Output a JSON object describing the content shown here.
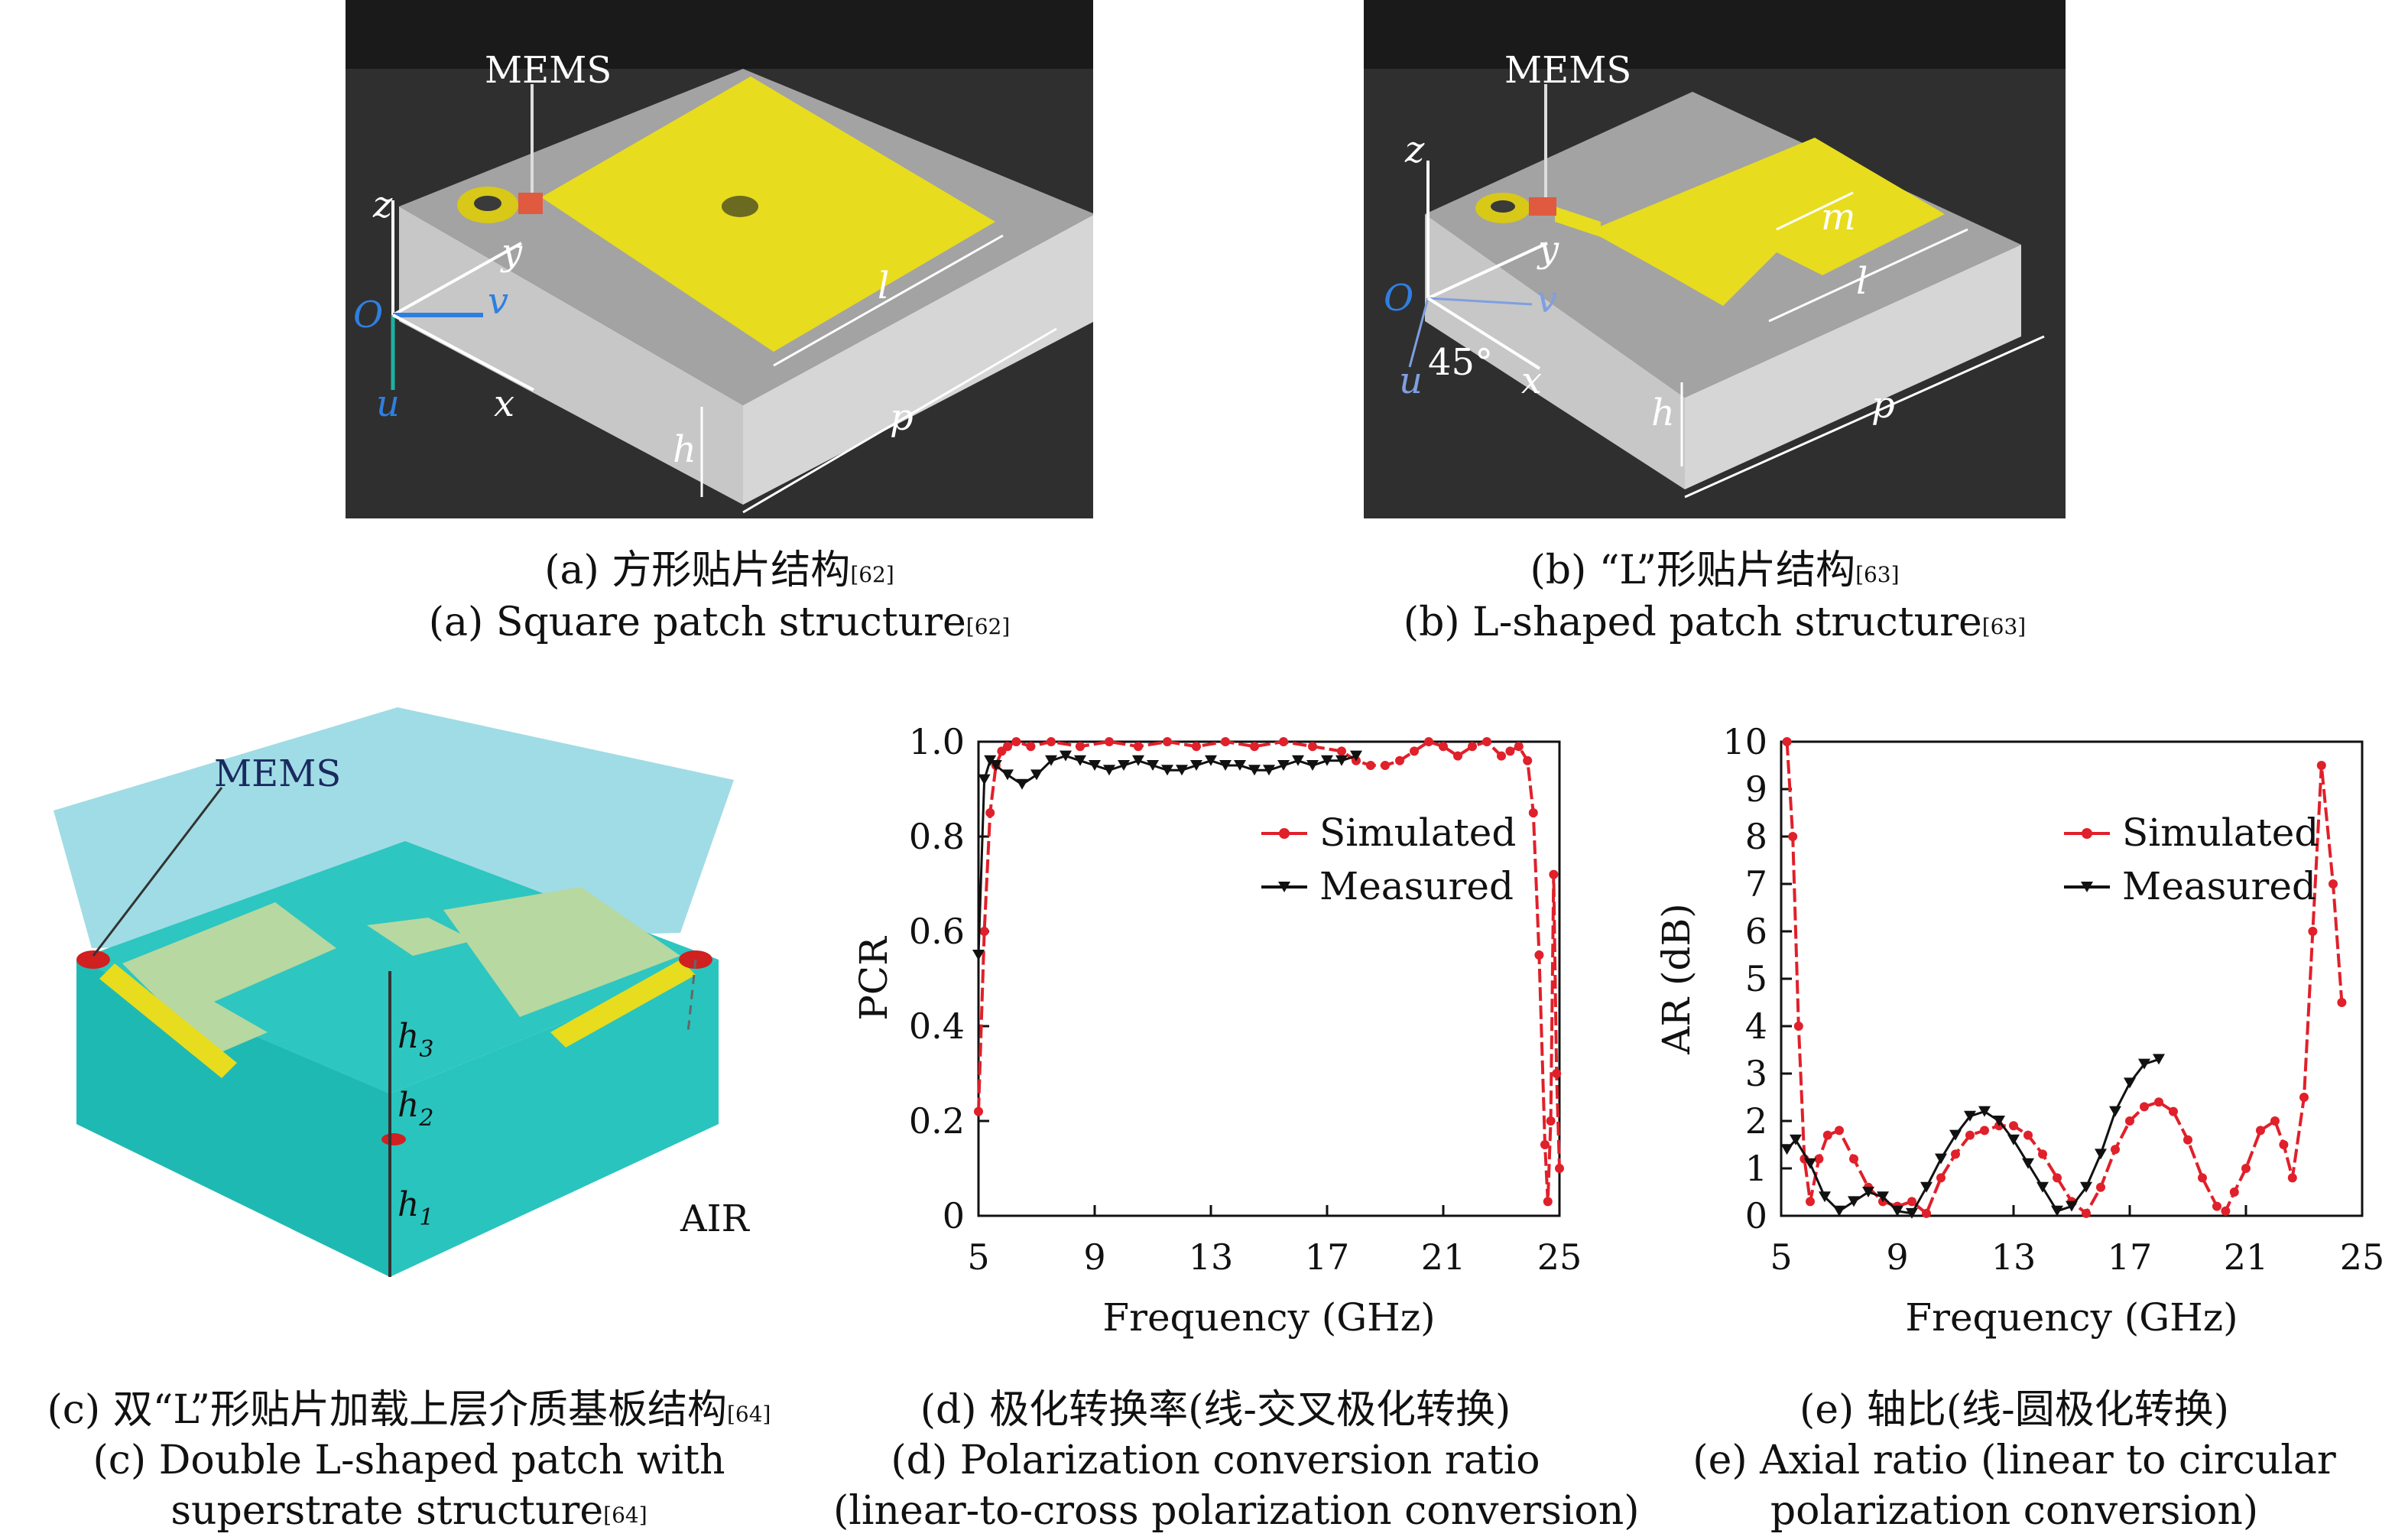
{
  "panel_a": {
    "mems_label": "MEMS",
    "axis_z": "z",
    "axis_y": "y",
    "axis_v": "v",
    "axis_u": "u",
    "axis_x": "x",
    "origin": "O",
    "dim_l": "l",
    "dim_p": "p",
    "dim_h": "h",
    "caption_cn": "(a) 方形贴片结构",
    "caption_en": "(a) Square patch structure",
    "ref": "[62]"
  },
  "panel_b": {
    "mems_label": "MEMS",
    "axis_z": "z",
    "axis_y": "y",
    "axis_v": "v",
    "axis_u": "u",
    "axis_x": "x",
    "origin": "O",
    "angle": "45°",
    "dim_m": "m",
    "dim_l": "l",
    "dim_p": "p",
    "dim_h": "h",
    "caption_cn": "(b) “L”形贴片结构",
    "caption_en": "(b) L-shaped patch structure",
    "ref": "[63]"
  },
  "panel_c": {
    "mems_label": "MEMS",
    "air_label": "AIR",
    "h1": "h",
    "h1_sub": "1",
    "h2": "h",
    "h2_sub": "2",
    "h3": "h",
    "h3_sub": "3",
    "caption_cn": "(c) 双“L”形贴片加载上层介质基板结构",
    "caption_en_1": "(c) Double L-shaped patch with",
    "caption_en_2": "superstrate structure",
    "ref": "[64]"
  },
  "panel_d": {
    "caption_cn": "(d) 极化转换率(线-交叉极化转换)",
    "caption_en_1": "(d) Polarization conversion ratio",
    "caption_en_2": "(linear-to-cross polarization conversion)"
  },
  "panel_e": {
    "caption_cn": "(e) 轴比(线-圆极化转换)",
    "caption_en_1": "(e) Axial ratio (linear to circular",
    "caption_en_2": "polarization conversion)"
  },
  "colors": {
    "simulated": "#e0202a",
    "measured": "#111111",
    "patch": "#e8dc1e",
    "substrate_top": "#9c9c9c",
    "substrate_side": "#bdbdbd",
    "teal": "#1fbfb8"
  },
  "chart_data": [
    {
      "type": "line",
      "panel": "d",
      "xlabel": "Frequency (GHz)",
      "ylabel": "PCR",
      "xlim": [
        5,
        25
      ],
      "ylim": [
        0,
        1.0
      ],
      "xticks": [
        "5",
        "9",
        "13",
        "17",
        "21",
        "25"
      ],
      "yticks": [
        "0",
        "0.2",
        "0.4",
        "0.6",
        "0.8",
        "1.0"
      ],
      "legend_position": "top-right",
      "series": [
        {
          "name": "Simulated",
          "color": "#e0202a",
          "x": [
            5.0,
            5.2,
            5.4,
            5.6,
            5.8,
            6.0,
            6.3,
            6.8,
            7.5,
            8.5,
            9.5,
            10.5,
            11.5,
            12.5,
            13.5,
            14.5,
            15.5,
            16.5,
            17.5,
            18.0,
            18.5,
            19.0,
            19.5,
            20.0,
            20.5,
            21.0,
            21.5,
            22.0,
            22.5,
            23.0,
            23.3,
            23.6,
            23.9,
            24.1,
            24.3,
            24.5,
            24.6,
            24.7,
            24.8,
            24.9,
            25.0
          ],
          "y": [
            0.22,
            0.6,
            0.85,
            0.95,
            0.98,
            0.99,
            1.0,
            0.99,
            1.0,
            0.99,
            1.0,
            0.99,
            1.0,
            0.99,
            1.0,
            0.99,
            1.0,
            0.99,
            0.98,
            0.96,
            0.95,
            0.95,
            0.96,
            0.98,
            1.0,
            0.99,
            0.97,
            0.99,
            1.0,
            0.97,
            0.98,
            0.99,
            0.96,
            0.85,
            0.55,
            0.15,
            0.03,
            0.2,
            0.72,
            0.3,
            0.1
          ]
        },
        {
          "name": "Measured",
          "color": "#111111",
          "x": [
            5.0,
            5.2,
            5.4,
            5.6,
            6.0,
            6.5,
            7.0,
            7.5,
            8.0,
            8.5,
            9.0,
            9.5,
            10.0,
            10.5,
            11.0,
            11.5,
            12.0,
            12.5,
            13.0,
            13.5,
            14.0,
            14.5,
            15.0,
            15.5,
            16.0,
            16.5,
            17.0,
            17.5,
            18.0
          ],
          "y": [
            0.55,
            0.92,
            0.96,
            0.95,
            0.93,
            0.91,
            0.93,
            0.96,
            0.97,
            0.96,
            0.95,
            0.94,
            0.95,
            0.96,
            0.95,
            0.94,
            0.94,
            0.95,
            0.96,
            0.95,
            0.95,
            0.94,
            0.94,
            0.95,
            0.96,
            0.95,
            0.96,
            0.96,
            0.97
          ]
        }
      ]
    },
    {
      "type": "line",
      "panel": "e",
      "xlabel": "Frequency (GHz)",
      "ylabel": "AR (dB)",
      "xlim": [
        5,
        25
      ],
      "ylim": [
        0,
        10
      ],
      "xticks": [
        "5",
        "9",
        "13",
        "17",
        "21",
        "25"
      ],
      "yticks": [
        "0",
        "1",
        "2",
        "3",
        "4",
        "5",
        "6",
        "7",
        "8",
        "9",
        "10"
      ],
      "legend_position": "top-right",
      "series": [
        {
          "name": "Simulated",
          "color": "#e0202a",
          "x": [
            5.2,
            5.4,
            5.6,
            5.8,
            6.0,
            6.3,
            6.6,
            7.0,
            7.5,
            8.0,
            8.5,
            9.0,
            9.5,
            10.0,
            10.5,
            11.0,
            11.5,
            12.0,
            12.5,
            13.0,
            13.5,
            14.0,
            14.5,
            15.0,
            15.5,
            16.0,
            16.5,
            17.0,
            17.5,
            18.0,
            18.5,
            19.0,
            19.5,
            20.0,
            20.3,
            20.6,
            21.0,
            21.5,
            22.0,
            22.3,
            22.6,
            23.0,
            23.3,
            23.6,
            24.0,
            24.3
          ],
          "y": [
            10.0,
            8.0,
            4.0,
            1.2,
            0.3,
            1.2,
            1.7,
            1.8,
            1.2,
            0.6,
            0.3,
            0.2,
            0.3,
            0.05,
            0.8,
            1.3,
            1.7,
            1.8,
            1.9,
            1.9,
            1.7,
            1.3,
            0.8,
            0.3,
            0.05,
            0.6,
            1.4,
            2.0,
            2.3,
            2.4,
            2.2,
            1.6,
            0.8,
            0.2,
            0.1,
            0.5,
            1.0,
            1.8,
            2.0,
            1.5,
            0.8,
            2.5,
            6.0,
            9.5,
            7.0,
            4.5
          ]
        },
        {
          "name": "Measured",
          "color": "#111111",
          "x": [
            5.2,
            5.5,
            6.0,
            6.5,
            7.0,
            7.5,
            8.0,
            8.5,
            9.0,
            9.5,
            10.0,
            10.5,
            11.0,
            11.5,
            12.0,
            12.5,
            13.0,
            13.5,
            14.0,
            14.5,
            15.0,
            15.5,
            16.0,
            16.5,
            17.0,
            17.5,
            18.0
          ],
          "y": [
            1.4,
            1.6,
            1.1,
            0.4,
            0.1,
            0.3,
            0.5,
            0.4,
            0.1,
            0.05,
            0.6,
            1.2,
            1.7,
            2.1,
            2.2,
            2.0,
            1.6,
            1.1,
            0.6,
            0.1,
            0.2,
            0.6,
            1.3,
            2.2,
            2.8,
            3.2,
            3.3
          ]
        }
      ]
    }
  ]
}
